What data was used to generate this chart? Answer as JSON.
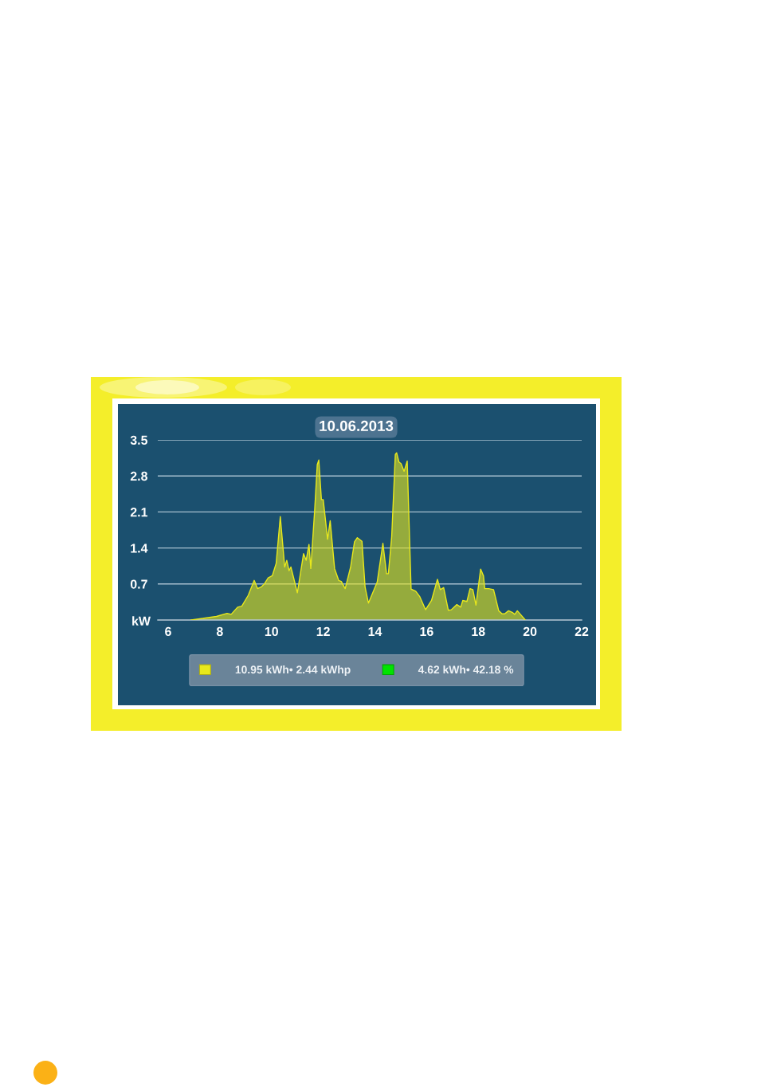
{
  "chart_data": {
    "type": "area",
    "title": "10.06.2013",
    "ylabel": "kW",
    "x": [
      6.89,
      7.87,
      8.28,
      8.44,
      8.69,
      8.85,
      9.1,
      9.33,
      9.46,
      9.62,
      9.72,
      9.87,
      10.03,
      10.18,
      10.34,
      10.51,
      10.59,
      10.68,
      10.75,
      11.0,
      11.24,
      11.34,
      11.45,
      11.52,
      11.67,
      11.77,
      11.83,
      11.93,
      12.0,
      12.17,
      12.27,
      12.44,
      12.6,
      12.7,
      12.85,
      13.06,
      13.21,
      13.32,
      13.5,
      13.62,
      13.75,
      14.09,
      14.31,
      14.45,
      14.52,
      14.65,
      14.79,
      14.84,
      14.93,
      15.01,
      15.13,
      15.25,
      15.4,
      15.58,
      15.73,
      15.96,
      16.19,
      16.42,
      16.53,
      16.66,
      16.84,
      16.96,
      17.17,
      17.32,
      17.4,
      17.56,
      17.68,
      17.79,
      17.91,
      18.09,
      18.2,
      18.25,
      18.4,
      18.59,
      18.79,
      18.92,
      19.02,
      19.17,
      19.31,
      19.41,
      19.51,
      19.63,
      19.82
    ],
    "series": [
      {
        "name": "10.95 kWh• 2.44 kWhp",
        "color": "#e8e81c",
        "values": [
          0.0,
          0.07,
          0.13,
          0.11,
          0.25,
          0.27,
          0.48,
          0.77,
          0.61,
          0.65,
          0.7,
          0.82,
          0.86,
          1.1,
          2.01,
          1.03,
          1.16,
          0.96,
          1.03,
          0.53,
          1.29,
          1.16,
          1.47,
          1.0,
          2.14,
          3.02,
          3.11,
          2.34,
          2.34,
          1.57,
          1.93,
          1.0,
          0.77,
          0.75,
          0.61,
          1.03,
          1.52,
          1.6,
          1.53,
          0.64,
          0.33,
          0.74,
          1.49,
          0.9,
          0.9,
          1.62,
          3.22,
          3.25,
          3.07,
          3.04,
          2.89,
          3.09,
          0.6,
          0.56,
          0.46,
          0.2,
          0.38,
          0.79,
          0.59,
          0.63,
          0.19,
          0.2,
          0.3,
          0.25,
          0.38,
          0.36,
          0.61,
          0.59,
          0.29,
          0.99,
          0.86,
          0.61,
          0.61,
          0.59,
          0.18,
          0.12,
          0.12,
          0.18,
          0.15,
          0.11,
          0.18,
          0.11,
          0.0
        ]
      },
      {
        "name": "4.62 kWh• 42.18 %",
        "color": "#00e400",
        "values": [
          null,
          null,
          null,
          null,
          null,
          null,
          null,
          null,
          null,
          null,
          null,
          null,
          null,
          null,
          null,
          null,
          null,
          null,
          null,
          null,
          null,
          null,
          null,
          null,
          null,
          null,
          null,
          null,
          null,
          null,
          null,
          null,
          null,
          null,
          null,
          null,
          null,
          null,
          null,
          null,
          null,
          null,
          null,
          null,
          null,
          null,
          null,
          null,
          null,
          null,
          null,
          null,
          null,
          null,
          null,
          null,
          null,
          null,
          null,
          null,
          null,
          null,
          null,
          null,
          null,
          null,
          null,
          null,
          null,
          null,
          null,
          null,
          null,
          null,
          null,
          null,
          null,
          null,
          null,
          null,
          null,
          null,
          null
        ]
      }
    ],
    "xlim": [
      5.6,
      22
    ],
    "xticks": [
      6,
      8,
      10,
      12,
      14,
      16,
      18,
      20,
      22
    ],
    "ylim": [
      0,
      3.5
    ],
    "yticks": [
      0.7,
      1.4,
      2.1,
      2.8,
      3.5
    ],
    "grid": "y",
    "legend": "bottom"
  }
}
